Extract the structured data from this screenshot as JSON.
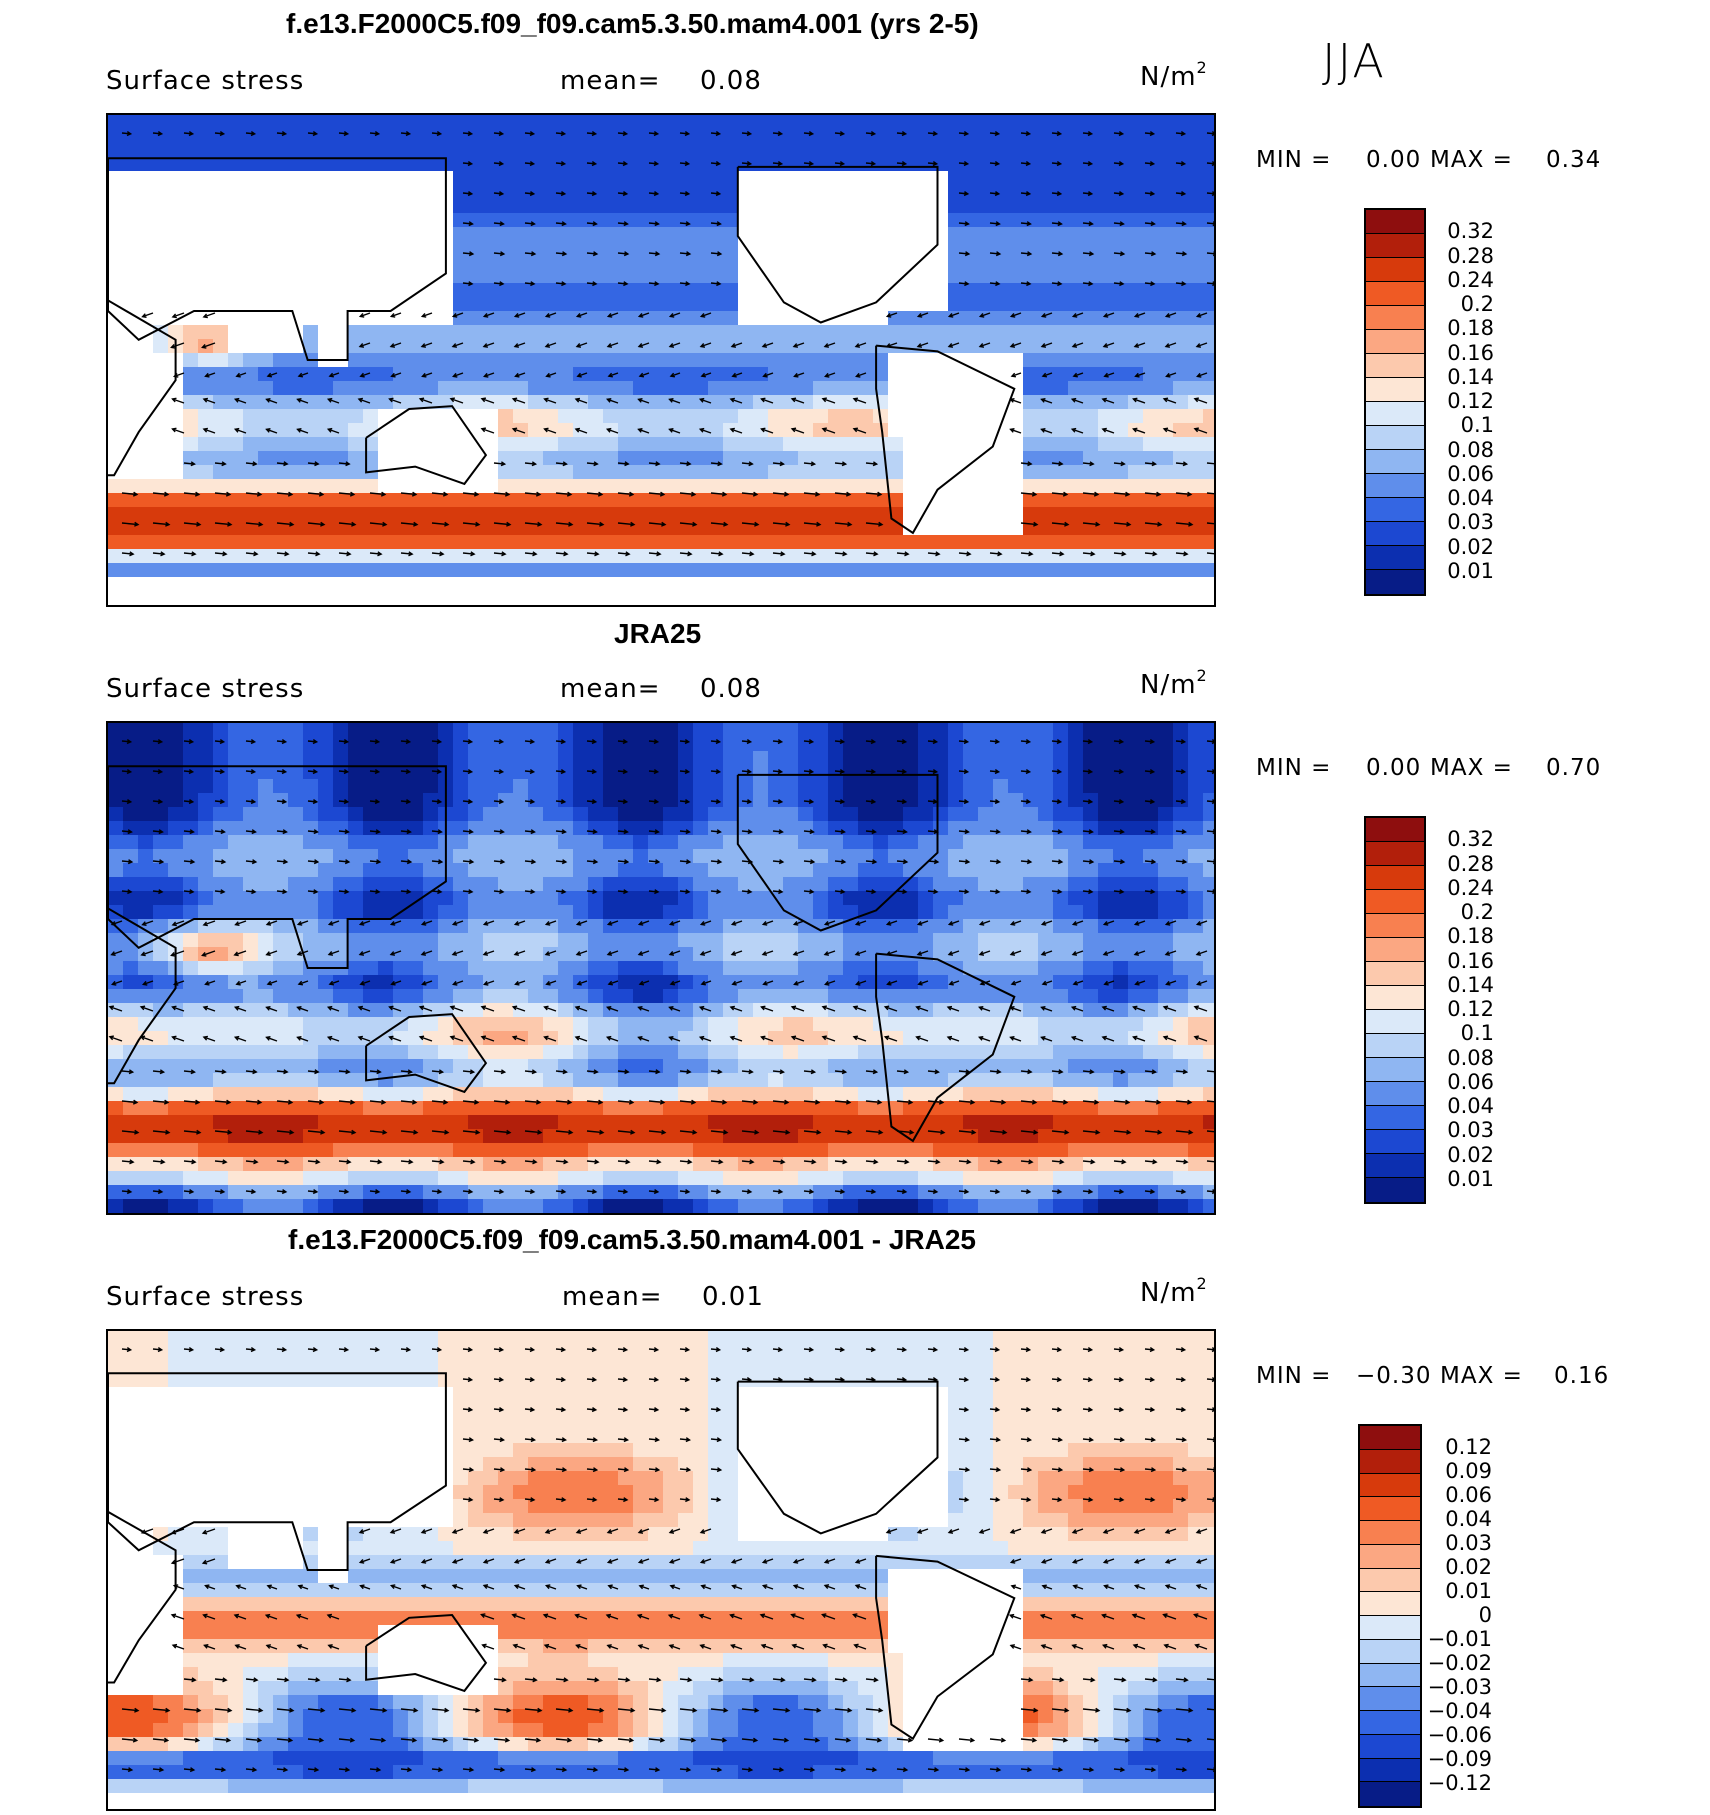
{
  "season": "JJA",
  "panels": [
    {
      "title": "f.e13.F2000C5.f09_f09.cam5.3.50.mam4.001 (yrs 2-5)",
      "variable": "Surface stress",
      "mean_label": "mean=",
      "mean_value": "0.08",
      "unit": "N/m",
      "unit_exp": "2",
      "min_label": "MIN =",
      "min_value": "0.00",
      "max_label": "MAX =",
      "max_value": "0.34",
      "field": "model"
    },
    {
      "title": "JRA25",
      "variable": "Surface stress",
      "mean_label": "mean=",
      "mean_value": "0.08",
      "unit": "N/m",
      "unit_exp": "2",
      "min_label": "MIN =",
      "min_value": "0.00",
      "max_label": "MAX =",
      "max_value": "0.70",
      "field": "obs"
    },
    {
      "title": "f.e13.F2000C5.f09_f09.cam5.3.50.mam4.001 - JRA25",
      "variable": "Surface stress",
      "mean_label": "mean=",
      "mean_value": "0.01",
      "unit": "N/m",
      "unit_exp": "2",
      "min_label": "MIN =",
      "min_value": "−0.30",
      "max_label": "MAX =",
      "max_value": "0.16",
      "field": "diff"
    }
  ],
  "colorbars": {
    "absolute": {
      "levels": [
        "0.32",
        "0.28",
        "0.24",
        "0.2",
        "0.18",
        "0.16",
        "0.14",
        "0.12",
        "0.1",
        "0.08",
        "0.06",
        "0.04",
        "0.03",
        "0.02",
        "0.01"
      ],
      "colors": [
        "#8e0e0e",
        "#b21f0b",
        "#d73a0c",
        "#ef5a24",
        "#f88050",
        "#fba782",
        "#fcc9ad",
        "#fde6d5",
        "#dbe9f9",
        "#b9d3f6",
        "#8fb6f2",
        "#5f8eeb",
        "#3466e3",
        "#1c48d2",
        "#0c2fb0",
        "#071c87"
      ]
    },
    "difference": {
      "levels": [
        "0.12",
        "0.09",
        "0.06",
        "0.04",
        "0.03",
        "0.02",
        "0.01",
        "0",
        "−0.01",
        "−0.02",
        "−0.03",
        "−0.04",
        "−0.06",
        "−0.09",
        "−0.12"
      ],
      "colors": [
        "#8e0e0e",
        "#b21f0b",
        "#d73a0c",
        "#ef5a24",
        "#f88050",
        "#fba782",
        "#fcc9ad",
        "#fde6d5",
        "#dbe9f9",
        "#b9d3f6",
        "#8fb6f2",
        "#5f8eeb",
        "#3466e3",
        "#1c48d2",
        "#0c2fb0",
        "#071c87"
      ]
    }
  },
  "chart_data": [
    {
      "type": "heatmap",
      "title": "f.e13.F2000C5.f09_f09.cam5.3.50.mam4.001 (yrs 2-5)",
      "variable": "Surface stress",
      "unit": "N/m2",
      "mean": 0.08,
      "min": 0.0,
      "max": 0.34,
      "vectors": "surface wind stress arrows"
    },
    {
      "type": "heatmap",
      "title": "JRA25",
      "variable": "Surface stress",
      "unit": "N/m2",
      "mean": 0.08,
      "min": 0.0,
      "max": 0.7,
      "vectors": "surface wind stress arrows"
    },
    {
      "type": "heatmap",
      "title": "f.e13.F2000C5.f09_f09.cam5.3.50.mam4.001 - JRA25",
      "variable": "Surface stress",
      "unit": "N/m2",
      "mean": 0.01,
      "min": -0.3,
      "max": 0.16,
      "vectors": "surface wind stress difference arrows"
    }
  ]
}
